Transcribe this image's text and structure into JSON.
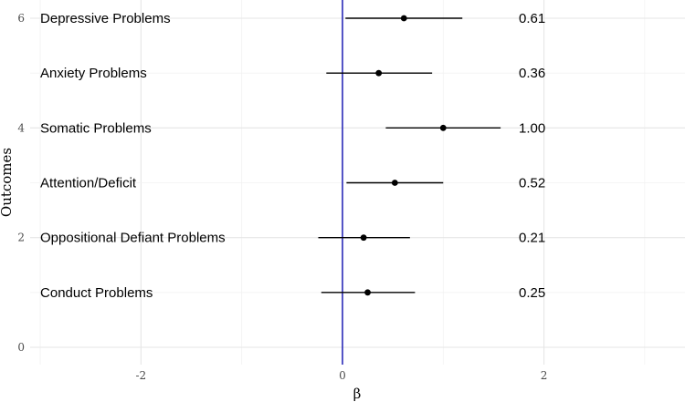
{
  "chart_data": {
    "type": "forest",
    "xlabel": "β",
    "ylabel": "Outcomes",
    "xlim": [
      -3.1,
      3.4
    ],
    "ylim": [
      0,
      6
    ],
    "x_ticks": [
      -2,
      0,
      2
    ],
    "y_ticks": [
      0,
      2,
      4,
      6
    ],
    "reference_line": {
      "x": 0,
      "color": "#2a2ab8"
    },
    "grid": true,
    "rows": [
      {
        "y": 6,
        "label": "Depressive Problems",
        "estimate": 0.61,
        "ci_low": 0.03,
        "ci_high": 1.19,
        "value_label": "0.61"
      },
      {
        "y": 5,
        "label": "Anxiety Problems",
        "estimate": 0.36,
        "ci_low": -0.16,
        "ci_high": 0.89,
        "value_label": "0.36"
      },
      {
        "y": 4,
        "label": "Somatic Problems",
        "estimate": 1.0,
        "ci_low": 0.43,
        "ci_high": 1.57,
        "value_label": "1.00"
      },
      {
        "y": 3,
        "label": "Attention/Deficit",
        "estimate": 0.52,
        "ci_low": 0.04,
        "ci_high": 1.0,
        "value_label": "0.52"
      },
      {
        "y": 2,
        "label": "Oppositional Defiant Problems",
        "estimate": 0.21,
        "ci_low": -0.24,
        "ci_high": 0.67,
        "value_label": "0.21"
      },
      {
        "y": 1,
        "label": "Conduct Problems",
        "estimate": 0.25,
        "ci_low": -0.21,
        "ci_high": 0.72,
        "value_label": "0.25"
      }
    ],
    "label_x": -3.0,
    "value_label_x": 1.75
  }
}
